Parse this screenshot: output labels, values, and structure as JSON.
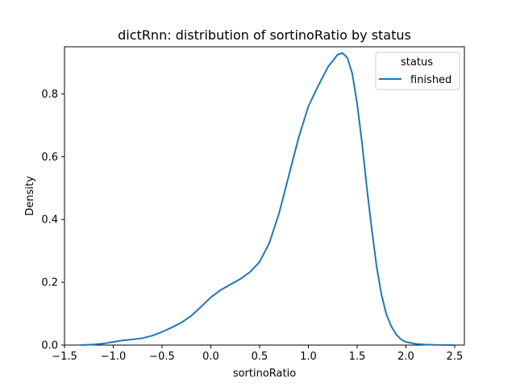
{
  "chart_data": {
    "type": "line",
    "title": "dictRnn: distribution of sortinoRatio by status",
    "xlabel": "sortinoRatio",
    "ylabel": "Density",
    "xlim": [
      -1.5,
      2.6
    ],
    "ylim": [
      0,
      0.95
    ],
    "xticks": [
      -1.5,
      -1.0,
      -0.5,
      0.0,
      0.5,
      1.0,
      1.5,
      2.0,
      2.5
    ],
    "xtick_labels": [
      "−1.5",
      "−1.0",
      "−0.5",
      "0.0",
      "0.5",
      "1.0",
      "1.5",
      "2.0",
      "2.5"
    ],
    "yticks": [
      0.0,
      0.2,
      0.4,
      0.6,
      0.8
    ],
    "ytick_labels": [
      "0.0",
      "0.2",
      "0.4",
      "0.6",
      "0.8"
    ],
    "grid": false,
    "legend": {
      "title": "status",
      "placement": "top-right"
    },
    "series": [
      {
        "name": "finished",
        "color": "#1f77b4",
        "x": [
          -1.33,
          -1.2,
          -1.1,
          -1.0,
          -0.9,
          -0.8,
          -0.7,
          -0.6,
          -0.5,
          -0.4,
          -0.3,
          -0.2,
          -0.1,
          0.0,
          0.1,
          0.2,
          0.3,
          0.4,
          0.5,
          0.6,
          0.7,
          0.8,
          0.9,
          1.0,
          1.1,
          1.2,
          1.3,
          1.35,
          1.4,
          1.45,
          1.5,
          1.55,
          1.6,
          1.65,
          1.7,
          1.75,
          1.8,
          1.85,
          1.9,
          1.95,
          2.0,
          2.1,
          2.2,
          2.3,
          2.4,
          2.49
        ],
        "y": [
          0.0,
          0.002,
          0.005,
          0.01,
          0.015,
          0.018,
          0.022,
          0.03,
          0.042,
          0.056,
          0.072,
          0.093,
          0.122,
          0.152,
          0.175,
          0.193,
          0.21,
          0.232,
          0.265,
          0.325,
          0.42,
          0.54,
          0.66,
          0.76,
          0.825,
          0.885,
          0.925,
          0.93,
          0.915,
          0.865,
          0.77,
          0.645,
          0.5,
          0.37,
          0.25,
          0.16,
          0.098,
          0.06,
          0.034,
          0.018,
          0.01,
          0.004,
          0.0015,
          0.0005,
          0.0002,
          0.0
        ]
      }
    ]
  }
}
